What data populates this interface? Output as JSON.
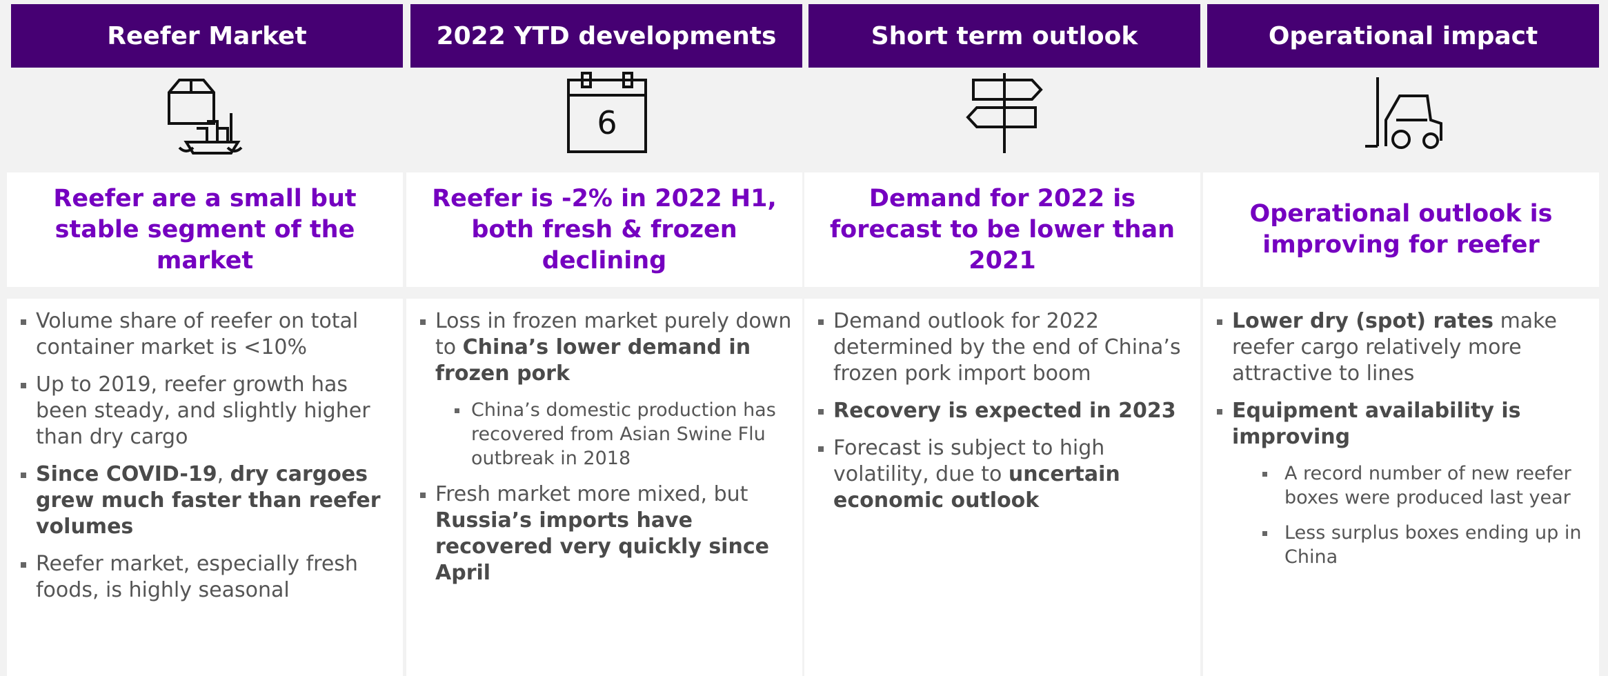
{
  "columns": [
    {
      "header": "Reefer Market",
      "headline": "Reefer are a small but stable segment of the market",
      "bullets": [
        {
          "level": 1,
          "segments": [
            {
              "text": "Volume share of reefer on total container market is <10%"
            }
          ]
        },
        {
          "level": 1,
          "segments": [
            {
              "text": "Up to 2019, reefer growth has been steady, and slightly higher than dry cargo"
            }
          ]
        },
        {
          "level": 1,
          "segments": [
            {
              "text": "Since COVID-19",
              "bold": true
            },
            {
              "text": ", "
            },
            {
              "text": "dry cargoes grew much faster than reefer volumes",
              "bold": true
            }
          ]
        },
        {
          "level": 1,
          "segments": [
            {
              "text": "Reefer market, especially fresh foods, is highly seasonal"
            }
          ]
        }
      ]
    },
    {
      "header": "2022 YTD developments",
      "icon_label": "6",
      "headline": "Reefer is -2% in 2022 H1, both fresh & frozen declining",
      "bullets": [
        {
          "level": 1,
          "segments": [
            {
              "text": "Loss in frozen market purely down to "
            },
            {
              "text": "China’s lower demand in frozen pork",
              "bold": true
            }
          ]
        },
        {
          "level": 2,
          "segments": [
            {
              "text": "China’s domestic production has recovered from Asian Swine Flu outbreak in 2018"
            }
          ]
        },
        {
          "level": 1,
          "segments": [
            {
              "text": "Fresh market more mixed, but "
            },
            {
              "text": "Russia’s imports have recovered very quickly since April",
              "bold": true
            }
          ]
        }
      ]
    },
    {
      "header": "Short term outlook",
      "headline": "Demand for 2022 is forecast to be lower than 2021",
      "bullets": [
        {
          "level": 1,
          "segments": [
            {
              "text": "Demand outlook for 2022 determined by the end of China’s frozen pork import boom"
            }
          ]
        },
        {
          "level": 1,
          "segments": [
            {
              "text": "Recovery is expected in 2023",
              "bold": true
            }
          ]
        },
        {
          "level": 1,
          "segments": [
            {
              "text": "Forecast is subject to high volatility, due to "
            },
            {
              "text": "uncertain economic outlook",
              "bold": true
            }
          ]
        }
      ]
    },
    {
      "header": "Operational impact",
      "headline": "Operational outlook is improving for reefer",
      "bullets": [
        {
          "level": 1,
          "segments": [
            {
              "text": "Lower dry (spot) rates",
              "bold": true
            },
            {
              "text": " make reefer cargo relatively more attractive to lines"
            }
          ]
        },
        {
          "level": 1,
          "segments": [
            {
              "text": "Equipment availability is improving",
              "bold": true
            }
          ]
        },
        {
          "level": 3,
          "segments": [
            {
              "text": "A record number of new reefer boxes were produced last year"
            }
          ]
        },
        {
          "level": 3,
          "segments": [
            {
              "text": "Less surplus boxes ending up in China"
            }
          ]
        }
      ]
    }
  ]
}
